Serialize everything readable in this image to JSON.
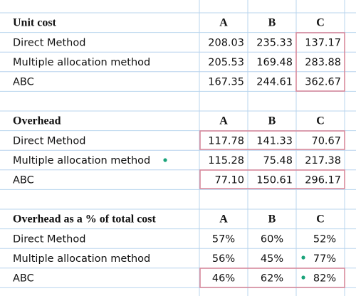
{
  "sections": [
    {
      "header": [
        "Unit cost",
        "A",
        "B",
        "C"
      ],
      "rows": [
        [
          "Direct Method",
          "208.03",
          "235.33",
          "137.17"
        ],
        [
          "Multiple allocation method",
          "205.53",
          "169.48",
          "283.88"
        ],
        [
          "ABC",
          "167.35",
          "244.61",
          "362.67"
        ]
      ]
    },
    {
      "header": [
        "Overhead",
        "A",
        "B",
        "C"
      ],
      "rows": [
        [
          "Direct Method",
          "117.78",
          "141.33",
          "70.67"
        ],
        [
          "Multiple allocation method",
          "115.28",
          "75.48",
          "217.38"
        ],
        [
          "ABC",
          "77.10",
          "150.61",
          "296.17"
        ]
      ]
    },
    {
      "header": [
        "Overhead as a % of total cost",
        "A",
        "B",
        "C"
      ],
      "rows": [
        [
          "Direct Method",
          "57%",
          "60%",
          "52%"
        ],
        [
          "Multiple allocation method",
          "56%",
          "45%",
          "77%"
        ],
        [
          "ABC",
          "46%",
          "62%",
          "82%"
        ]
      ]
    }
  ]
}
